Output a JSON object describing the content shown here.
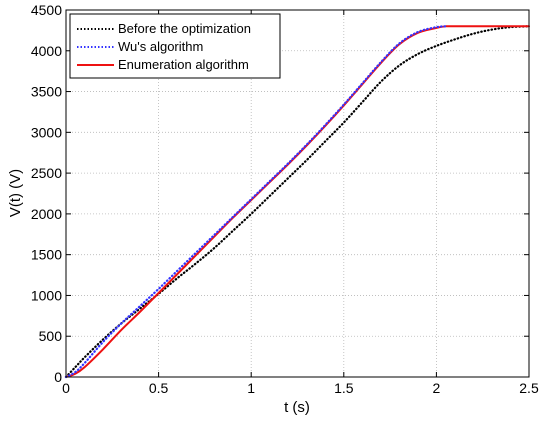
{
  "chart_data": {
    "type": "line",
    "title": "",
    "xlabel": "t (s)",
    "ylabel": "V(t) (V)",
    "xlim": [
      0,
      2.5
    ],
    "ylim": [
      0,
      4500
    ],
    "xticks": [
      0,
      0.5,
      1,
      1.5,
      2,
      2.5
    ],
    "xtick_labels": [
      "0",
      "0.5",
      "1",
      "1.5",
      "2",
      "2.5"
    ],
    "yticks": [
      0,
      500,
      1000,
      1500,
      2000,
      2500,
      3000,
      3500,
      4000,
      4500
    ],
    "ytick_labels": [
      "0",
      "500",
      "1000",
      "1500",
      "2000",
      "2500",
      "3000",
      "3500",
      "4000",
      "4500"
    ],
    "grid": true,
    "legend_position": "top-left",
    "series": [
      {
        "name": "Before the optimization",
        "color": "#000000",
        "style": "dotted",
        "x": [
          0,
          0.05,
          0.1,
          0.2,
          0.3,
          0.4,
          0.5,
          0.6,
          0.7,
          0.8,
          0.9,
          1.0,
          1.1,
          1.2,
          1.3,
          1.4,
          1.5,
          1.6,
          1.7,
          1.8,
          1.9,
          2.0,
          2.1,
          2.2,
          2.3,
          2.4,
          2.5
        ],
        "y": [
          0,
          120,
          240,
          460,
          660,
          840,
          1020,
          1210,
          1390,
          1580,
          1790,
          2000,
          2220,
          2440,
          2660,
          2890,
          3120,
          3370,
          3620,
          3820,
          3960,
          4060,
          4140,
          4210,
          4260,
          4290,
          4300
        ]
      },
      {
        "name": "Wu's algorithm",
        "color": "#3333ff",
        "style": "dotted",
        "x": [
          0,
          0.05,
          0.1,
          0.2,
          0.3,
          0.4,
          0.5,
          0.6,
          0.7,
          0.8,
          0.9,
          1.0,
          1.1,
          1.2,
          1.3,
          1.4,
          1.5,
          1.6,
          1.7,
          1.8,
          1.9,
          2.0,
          2.05
        ],
        "y": [
          0,
          60,
          170,
          430,
          660,
          870,
          1080,
          1300,
          1520,
          1740,
          1960,
          2180,
          2400,
          2620,
          2850,
          3090,
          3340,
          3600,
          3860,
          4090,
          4230,
          4290,
          4300
        ]
      },
      {
        "name": "Enumeration algorithm",
        "color": "#ee1111",
        "style": "solid",
        "x": [
          0,
          0.05,
          0.1,
          0.2,
          0.3,
          0.4,
          0.5,
          0.6,
          0.7,
          0.8,
          0.9,
          1.0,
          1.1,
          1.2,
          1.3,
          1.4,
          1.5,
          1.6,
          1.7,
          1.8,
          1.9,
          2.0,
          2.05,
          2.1,
          2.2,
          2.3,
          2.4,
          2.5
        ],
        "y": [
          0,
          40,
          120,
          340,
          580,
          800,
          1030,
          1260,
          1490,
          1720,
          1950,
          2170,
          2390,
          2610,
          2840,
          3080,
          3330,
          3590,
          3850,
          4080,
          4220,
          4280,
          4300,
          4300,
          4300,
          4300,
          4300,
          4300
        ]
      }
    ]
  }
}
